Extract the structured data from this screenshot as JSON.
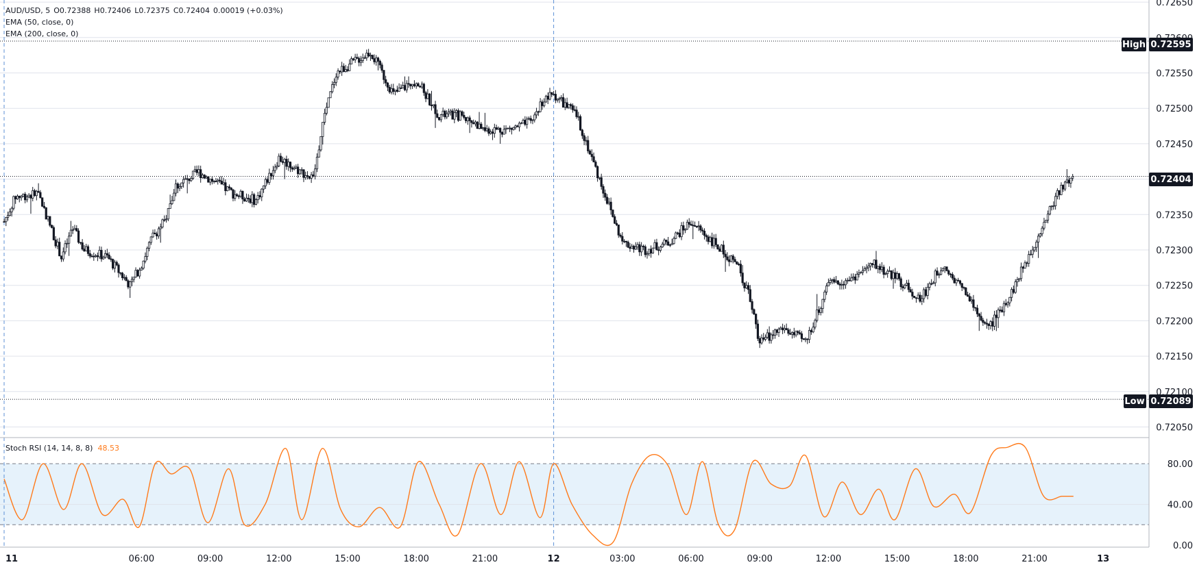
{
  "legend": {
    "symbol": "AUD/USD",
    "interval": "5",
    "open": "O0.72388",
    "high": "H0.72406",
    "low": "L0.72375",
    "close": "C0.72404",
    "change": "0.00019 (+0.03%)",
    "ema50": "EMA (50, close, 0)",
    "ema200": "EMA (200, close, 0)"
  },
  "price_labels": {
    "high_tag": "High",
    "high_value": "0.72595",
    "low_tag": "Low",
    "low_value": "0.72089",
    "last_value": "0.72404"
  },
  "rsi_legend": {
    "name": "Stoch RSI (14, 14, 8, 8)",
    "value": "48.53"
  },
  "colors": {
    "candle": "#131722",
    "stoch": "#ff7a1a",
    "band_fill": "#e6f2fb",
    "grid": "#e0e3eb",
    "day_line": "#5b8fd6"
  },
  "chart_data": [
    {
      "type": "candlestick",
      "title": "AUD/USD, 5",
      "y_ticks": [
        "0.72650",
        "0.72600",
        "0.72550",
        "0.72500",
        "0.72450",
        "0.72400",
        "0.72350",
        "0.72300",
        "0.72250",
        "0.72200",
        "0.72150",
        "0.72100",
        "0.72050"
      ],
      "ylim": [
        0.72035,
        0.72653
      ],
      "x_ticks": [
        "11",
        "06:00",
        "09:00",
        "12:00",
        "15:00",
        "18:00",
        "21:00",
        "12",
        "03:00",
        "06:00",
        "09:00",
        "12:00",
        "15:00",
        "18:00",
        "21:00",
        "13"
      ],
      "x_tick_hours": [
        0,
        6,
        9,
        12,
        15,
        18,
        21,
        24,
        27,
        30,
        33,
        36,
        39,
        42,
        45,
        48
      ],
      "xlim_hours": [
        0,
        50
      ],
      "day_separators_hours": [
        0,
        24
      ],
      "high": 0.72595,
      "low": 0.72089,
      "last": 0.72404,
      "price_path_hours": [
        0,
        0.5,
        1.5,
        2.5,
        3,
        3.5,
        4.5,
        5.5,
        6,
        6.5,
        7,
        7.5,
        8.5,
        9,
        10,
        11,
        12,
        13.5,
        14,
        14.5,
        15,
        15.5,
        16,
        17,
        17.5,
        18,
        19,
        20,
        21,
        22,
        23,
        23.5,
        24,
        25,
        26,
        27,
        28,
        29,
        30,
        31,
        32,
        32.5,
        33,
        34,
        35,
        36,
        37,
        38,
        39,
        40,
        41,
        42,
        42.5,
        43,
        44,
        45,
        46,
        46.7
      ],
      "price_path": [
        0.7234,
        0.72375,
        0.7238,
        0.7229,
        0.7233,
        0.723,
        0.7229,
        0.7225,
        0.7228,
        0.7232,
        0.7234,
        0.7239,
        0.7241,
        0.724,
        0.7238,
        0.7237,
        0.7243,
        0.724,
        0.7249,
        0.7255,
        0.7256,
        0.7257,
        0.7258,
        0.7252,
        0.7253,
        0.7254,
        0.7249,
        0.7249,
        0.7247,
        0.7247,
        0.7248,
        0.7251,
        0.7252,
        0.7249,
        0.724,
        0.7231,
        0.723,
        0.7231,
        0.7234,
        0.7231,
        0.7228,
        0.7224,
        0.7217,
        0.7219,
        0.7217,
        0.7225,
        0.7226,
        0.7228,
        0.7226,
        0.7223,
        0.7228,
        0.7224,
        0.7221,
        0.7219,
        0.7224,
        0.7231,
        0.7238,
        0.72404
      ]
    },
    {
      "type": "line",
      "name": "Stoch RSI (14, 14, 8, 8)",
      "y_ticks": [
        "80.00",
        "40.00",
        "0.00"
      ],
      "ylim": [
        -2,
        105
      ],
      "band": [
        20,
        80
      ],
      "mid": 40,
      "x_hours": [
        0,
        0.8,
        1.7,
        2.6,
        3.4,
        4.3,
        5.2,
        5.9,
        6.6,
        7.3,
        8.1,
        8.9,
        9.8,
        10.5,
        11.4,
        12.3,
        13,
        13.9,
        14.7,
        15.5,
        16.4,
        17.3,
        18.1,
        19,
        19.8,
        20.8,
        21.7,
        22.5,
        23.4,
        24,
        24.8,
        25.7,
        26.6,
        27.4,
        28.2,
        29,
        29.8,
        30.5,
        31.2,
        31.9,
        32.7,
        33.5,
        34.3,
        35,
        35.8,
        36.6,
        37.4,
        38.2,
        38.9,
        39.8,
        40.6,
        41.5,
        42.2,
        43.1,
        43.8,
        44.6,
        45.4,
        46.2,
        46.7
      ],
      "values": [
        65,
        25,
        80,
        35,
        80,
        30,
        45,
        18,
        80,
        70,
        75,
        22,
        75,
        20,
        40,
        95,
        25,
        95,
        35,
        18,
        37,
        18,
        82,
        40,
        10,
        80,
        30,
        82,
        27,
        80,
        40,
        10,
        3,
        60,
        88,
        78,
        30,
        82,
        20,
        15,
        82,
        60,
        58,
        88,
        28,
        62,
        30,
        55,
        25,
        75,
        38,
        50,
        32,
        88,
        96,
        96,
        48,
        48,
        48
      ]
    }
  ]
}
